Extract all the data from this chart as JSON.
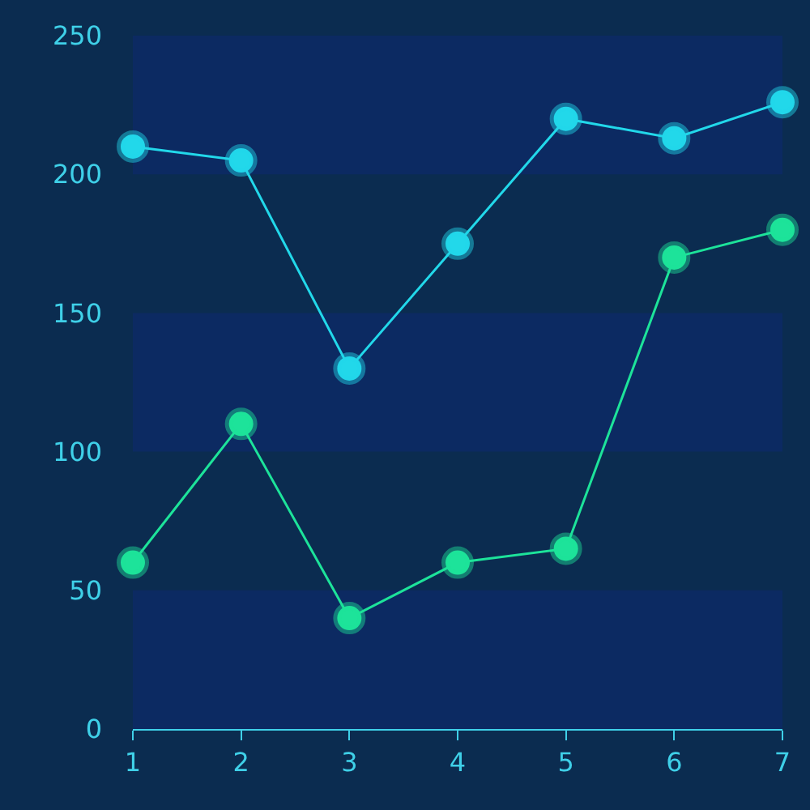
{
  "chart_data": {
    "type": "line",
    "categories": [
      "1",
      "2",
      "3",
      "4",
      "5",
      "6",
      "7"
    ],
    "series": [
      {
        "color": "#22d8ea",
        "values": [
          210,
          205,
          130,
          175,
          220,
          213,
          226
        ]
      },
      {
        "color": "#1de39a",
        "values": [
          60,
          110,
          40,
          60,
          65,
          170,
          180
        ]
      }
    ],
    "ylim": [
      0,
      250
    ],
    "yticks": [
      0,
      50,
      100,
      150,
      200,
      250
    ],
    "grid": false,
    "marker": "circle",
    "line_style": "solid",
    "bands": [
      {
        "axis": "y",
        "from": 0,
        "to": 50,
        "color": "#0c2a62"
      },
      {
        "axis": "y",
        "from": 100,
        "to": 150,
        "color": "#0c2a62"
      },
      {
        "axis": "y",
        "from": 200,
        "to": 250,
        "color": "#0c2a62"
      }
    ]
  }
}
